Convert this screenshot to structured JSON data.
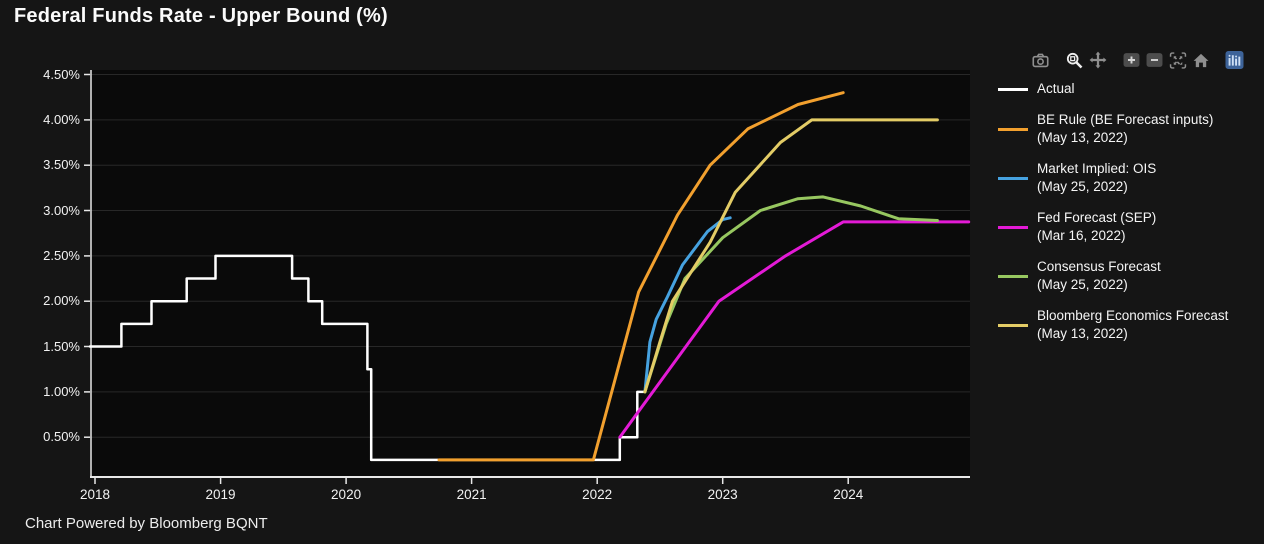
{
  "page": {
    "title": "Federal Funds Rate - Upper Bound (%)",
    "footer": "Chart Powered by Bloomberg BQNT",
    "background": "#151515",
    "plot_background": "#0a0a0a"
  },
  "toolbar": {
    "groups": [
      [
        "camera-icon"
      ],
      [
        "zoom-icon",
        "pan-icon"
      ],
      [
        "zoom-in-icon",
        "zoom-out-icon",
        "autoscale-icon",
        "reset-home-icon"
      ],
      [
        "logo-bars-icon"
      ]
    ],
    "active_icon": "zoom-icon",
    "icon_color": "#8f8f8f",
    "active_color": "#efefef",
    "button_bg": "#4d4d4d",
    "logo_bg": "#3d6399",
    "logo_fg": "#cfe0f5"
  },
  "chart_data": {
    "type": "line",
    "title": "Federal Funds Rate - Upper Bound (%)",
    "xlim": [
      2017.96,
      2024.97
    ],
    "ylim": [
      0.05,
      4.55
    ],
    "grid": "horizontal-only",
    "grid_color": "#282828",
    "axis_color": "#e8e8e8",
    "legend_position": "right",
    "xticks": {
      "values": [
        2018,
        2019,
        2020,
        2021,
        2022,
        2023,
        2024
      ],
      "labels": [
        "2018",
        "2019",
        "2020",
        "2021",
        "2022",
        "2023",
        "2024"
      ]
    },
    "yticks": {
      "values": [
        0.5,
        1.0,
        1.5,
        2.0,
        2.5,
        3.0,
        3.5,
        4.0,
        4.5
      ],
      "labels": [
        "0.50%",
        "1.00%",
        "1.50%",
        "2.00%",
        "2.50%",
        "3.00%",
        "3.50%",
        "4.00%",
        "4.50%"
      ]
    },
    "series": [
      {
        "name": "Actual",
        "date": "",
        "color": "#ffffff",
        "width": 2.5,
        "points": [
          [
            2017.96,
            1.5
          ],
          [
            2018.21,
            1.5
          ],
          [
            2018.21,
            1.75
          ],
          [
            2018.45,
            1.75
          ],
          [
            2018.45,
            2.0
          ],
          [
            2018.73,
            2.0
          ],
          [
            2018.73,
            2.25
          ],
          [
            2018.96,
            2.25
          ],
          [
            2018.96,
            2.5
          ],
          [
            2019.57,
            2.5
          ],
          [
            2019.57,
            2.25
          ],
          [
            2019.7,
            2.25
          ],
          [
            2019.7,
            2.0
          ],
          [
            2019.81,
            2.0
          ],
          [
            2019.81,
            1.75
          ],
          [
            2020.17,
            1.75
          ],
          [
            2020.17,
            1.25
          ],
          [
            2020.2,
            1.25
          ],
          [
            2020.2,
            0.25
          ],
          [
            2022.18,
            0.25
          ],
          [
            2022.18,
            0.5
          ],
          [
            2022.32,
            0.5
          ],
          [
            2022.32,
            1.0
          ],
          [
            2022.37,
            1.0
          ]
        ]
      },
      {
        "name": "BE Rule (BE Forecast inputs)",
        "date": "(May 13, 2022)",
        "color": "#f2a02e",
        "width": 3,
        "points": [
          [
            2020.74,
            0.25
          ],
          [
            2021.97,
            0.25
          ],
          [
            2022.33,
            2.1
          ],
          [
            2022.64,
            2.95
          ],
          [
            2022.9,
            3.5
          ],
          [
            2023.2,
            3.9
          ],
          [
            2023.6,
            4.17
          ],
          [
            2023.96,
            4.3
          ]
        ]
      },
      {
        "name": "Market Implied: OIS",
        "date": "(May 25, 2022)",
        "color": "#46a2e0",
        "width": 3,
        "points": [
          [
            2022.38,
            1.0
          ],
          [
            2022.42,
            1.55
          ],
          [
            2022.47,
            1.8
          ],
          [
            2022.56,
            2.05
          ],
          [
            2022.68,
            2.4
          ],
          [
            2022.88,
            2.77
          ],
          [
            2023.0,
            2.9
          ],
          [
            2023.06,
            2.92
          ]
        ]
      },
      {
        "name": "Fed Forecast (SEP)",
        "date": "(Mar 16, 2022)",
        "color": "#e31ad6",
        "width": 3,
        "points": [
          [
            2022.18,
            0.5
          ],
          [
            2022.97,
            2.0
          ],
          [
            2023.5,
            2.5
          ],
          [
            2023.96,
            2.875
          ],
          [
            2024.96,
            2.875
          ]
        ]
      },
      {
        "name": "Consensus Forecast",
        "date": "(May 25, 2022)",
        "color": "#97c760",
        "width": 3,
        "points": [
          [
            2022.38,
            1.0
          ],
          [
            2022.55,
            1.75
          ],
          [
            2022.7,
            2.25
          ],
          [
            2023.0,
            2.7
          ],
          [
            2023.3,
            3.0
          ],
          [
            2023.6,
            3.13
          ],
          [
            2023.8,
            3.15
          ],
          [
            2024.1,
            3.05
          ],
          [
            2024.4,
            2.91
          ],
          [
            2024.71,
            2.89
          ]
        ]
      },
      {
        "name": "Bloomberg Economics Forecast",
        "date": "(May 13, 2022)",
        "color": "#e3cc66",
        "width": 3,
        "points": [
          [
            2022.38,
            1.0
          ],
          [
            2022.5,
            1.55
          ],
          [
            2022.6,
            2.0
          ],
          [
            2022.9,
            2.65
          ],
          [
            2023.1,
            3.2
          ],
          [
            2023.46,
            3.75
          ],
          [
            2023.71,
            4.0
          ],
          [
            2024.71,
            4.0
          ]
        ]
      }
    ]
  }
}
